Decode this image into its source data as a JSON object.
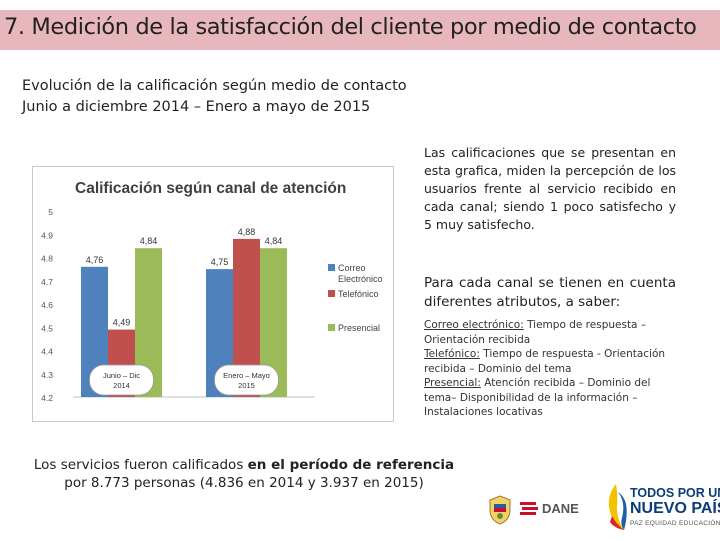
{
  "slide": {
    "title": "7. Medición de la satisfacción del cliente por medio de contacto",
    "subtitle_line1": "Evolución de la calificación según medio de contacto",
    "subtitle_line2": "Junio a diciembre 2014 – Enero a mayo de 2015"
  },
  "text": {
    "paragraph1": "Las calificaciones que se presentan en esta grafica, miden la percepción de los usuarios frente al servicio recibido en cada canal; siendo 1 poco satisfecho y 5 muy satisfecho.",
    "paragraph2": "Para cada canal se tienen en cuenta diferentes atributos, a saber:",
    "details": [
      {
        "label": "Correo electrónico:",
        "text": " Tiempo de respuesta – Orientación recibida"
      },
      {
        "label": "Telefónico:",
        "text": " Tiempo de respuesta - Orientación recibida – Dominio del tema"
      },
      {
        "label": "Presencial:",
        "text": " Atención recibida – Dominio del tema– Disponibilidad de la información – Instalaciones locativas"
      }
    ],
    "footnote_part1": "Los servicios fueron calificados ",
    "footnote_bold": "en el período de referencia",
    "footnote_part2": " por 8.773 personas (4.836 en 2014 y 3.937 en 2015)"
  },
  "logos": {
    "dane": "DANE",
    "tpnp_line1": "TODOS POR UN",
    "tpnp_line2": "NUEVO PAÍS",
    "tpnp_line3": "PAZ  EQUIDAD  EDUCACIÓN"
  },
  "chart_data": {
    "type": "bar",
    "title": "Calificación según canal de atención",
    "categories": [
      "Junio – Dic 2014",
      "Enero – Mayo 2015"
    ],
    "series": [
      {
        "name": "Correo Electrónico",
        "values": [
          4.76,
          4.75
        ],
        "color": "#4f81bd"
      },
      {
        "name": "Telefónico",
        "values": [
          4.49,
          4.88
        ],
        "color": "#c0504d"
      },
      {
        "name": "Presencial",
        "values": [
          4.84,
          4.84
        ],
        "color": "#9bbb59"
      }
    ],
    "data_labels": [
      [
        "4,76",
        "4,49",
        "4,84"
      ],
      [
        "4,75",
        "4,88",
        "4,84"
      ]
    ],
    "ylim": [
      4.2,
      5.0
    ],
    "yticks": [
      "4.2",
      "4.3",
      "4.4",
      "4.5",
      "4.6",
      "4.7",
      "4.8",
      "4.9",
      "5"
    ],
    "grid": false,
    "legend": "right"
  }
}
